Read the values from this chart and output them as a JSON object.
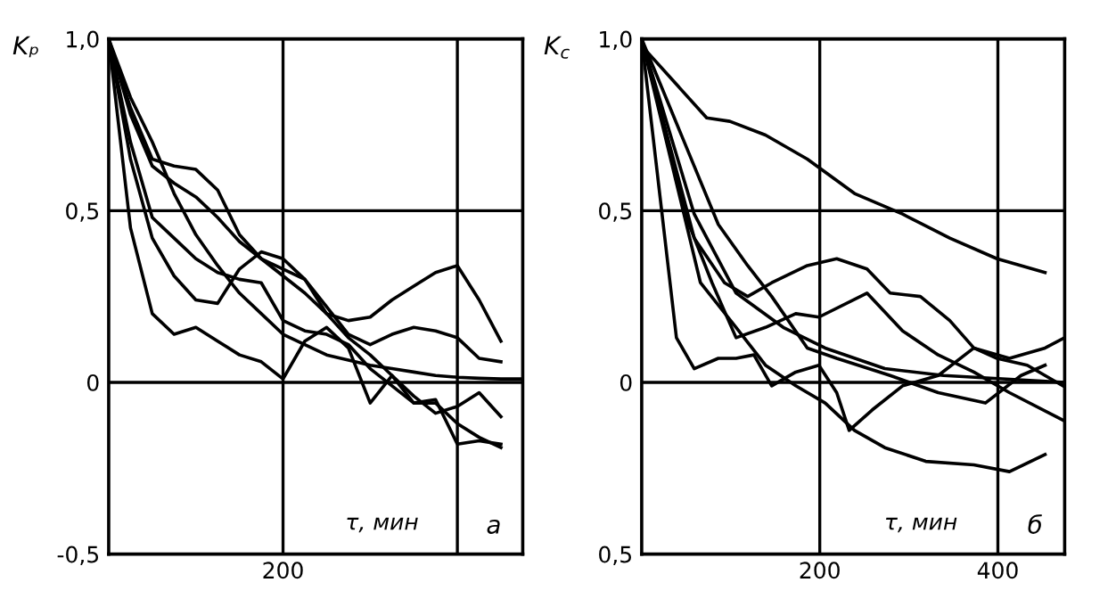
{
  "chart_data": [
    {
      "type": "line",
      "ylabel": "Kₚ",
      "xlabel": "τ, мин",
      "annotations": [
        "а"
      ],
      "categories": [
        null,
        null,
        null,
        null,
        null,
        null,
        null,
        null,
        "200",
        null,
        null,
        null,
        null,
        null,
        null,
        null,
        null,
        null,
        null,
        null
      ],
      "ylim": [
        -0.5,
        1.0
      ],
      "yticks": [
        {
          "value": 1.0,
          "label": "1,0"
        },
        {
          "value": 0.5,
          "label": "0,5"
        },
        0,
        {
          "value": -0.5,
          "label": "-0,5"
        }
      ],
      "grid": true,
      "marker": "none",
      "line_style": "solid",
      "series": [
        {
          "color": "#000000",
          "values": [
            1.0,
            0.83,
            0.7,
            0.55,
            0.43,
            0.34,
            0.26,
            0.2,
            0.14,
            0.11,
            0.08,
            0.065,
            0.05,
            0.04,
            0.03,
            0.02,
            0.015,
            0.012,
            0.01,
            0.01
          ]
        },
        {
          "color": "#000000",
          "values": [
            1.0,
            0.45,
            0.2,
            0.14,
            0.16,
            0.12,
            0.08,
            0.06,
            0.01,
            0.12,
            0.16,
            0.1,
            -0.06,
            0.02,
            -0.06,
            -0.05,
            -0.18,
            -0.17,
            -0.18,
            null
          ]
        },
        {
          "color": "#000000",
          "values": [
            1.0,
            0.65,
            0.42,
            0.31,
            0.24,
            0.23,
            0.33,
            0.38,
            0.36,
            0.3,
            0.2,
            0.18,
            0.19,
            0.24,
            0.28,
            0.32,
            0.34,
            0.24,
            0.12,
            null
          ]
        },
        {
          "color": "#000000",
          "values": [
            1.0,
            0.8,
            0.65,
            0.63,
            0.62,
            0.56,
            0.43,
            0.36,
            0.33,
            0.3,
            0.22,
            0.14,
            0.11,
            0.14,
            0.16,
            0.15,
            0.13,
            0.07,
            0.06,
            null
          ]
        },
        {
          "color": "#000000",
          "values": [
            1.0,
            0.78,
            0.63,
            0.58,
            0.54,
            0.48,
            0.41,
            0.36,
            0.31,
            0.26,
            0.2,
            0.13,
            0.08,
            0.02,
            -0.04,
            -0.09,
            -0.07,
            -0.03,
            -0.1,
            null
          ]
        },
        {
          "color": "#000000",
          "values": [
            1.0,
            0.7,
            0.48,
            0.42,
            0.36,
            0.32,
            0.3,
            0.29,
            0.18,
            0.15,
            0.14,
            0.11,
            0.04,
            -0.01,
            -0.06,
            -0.06,
            -0.12,
            -0.16,
            -0.19,
            null
          ]
        }
      ]
    },
    {
      "type": "line",
      "ylabel": "K$_{c}$",
      "xlabel": "τ, мин",
      "annotations": [
        "б"
      ],
      "xlim": [
        0,
        475
      ],
      "xticks": [
        200,
        400
      ],
      "ylim": [
        -0.5,
        1.0
      ],
      "yticks": [
        {
          "value": 1.0,
          "label": "1,0"
        },
        {
          "value": 0.5,
          "label": "0,5"
        },
        0,
        {
          "value": -0.5,
          "label": "0,5"
        }
      ],
      "grid": true,
      "marker": "none",
      "line_style": "solid",
      "series": [
        {
          "color": "#000000",
          "x": [
            0,
            73,
            99,
            139,
            186,
            239,
            293,
            346,
            399,
            453
          ],
          "values": [
            0.98,
            0.77,
            0.76,
            0.72,
            0.65,
            0.55,
            0.49,
            0.42,
            0.36,
            0.32
          ]
        },
        {
          "color": "#000000",
          "x": [
            0,
            59,
            106,
            159,
            206,
            273,
            339,
            475
          ],
          "values": [
            1.0,
            0.49,
            0.26,
            0.16,
            0.1,
            0.04,
            0.02,
            0.0
          ]
        },
        {
          "color": "#000000",
          "x": [
            0,
            39,
            59,
            86,
            106,
            126,
            146,
            173,
            199,
            219,
            233,
            259,
            293,
            333,
            373,
            413,
            453,
            475
          ],
          "values": [
            1.0,
            0.13,
            0.04,
            0.07,
            0.07,
            0.08,
            -0.01,
            0.03,
            0.05,
            -0.03,
            -0.14,
            -0.08,
            -0.01,
            0.02,
            0.1,
            0.07,
            0.1,
            0.13
          ]
        },
        {
          "color": "#000000",
          "x": [
            0,
            66,
            106,
            139,
            173,
            206,
            239,
            273,
            319,
            373,
            413,
            453
          ],
          "values": [
            1.0,
            0.29,
            0.16,
            0.05,
            -0.01,
            -0.06,
            -0.14,
            -0.19,
            -0.23,
            -0.24,
            -0.26,
            -0.21
          ]
        },
        {
          "color": "#000000",
          "x": [
            0,
            59,
            93,
            119,
            146,
            186,
            219,
            253,
            279,
            313,
            346,
            373,
            399,
            433,
            473
          ],
          "values": [
            1.0,
            0.42,
            0.29,
            0.25,
            0.29,
            0.34,
            0.36,
            0.33,
            0.26,
            0.25,
            0.18,
            0.1,
            0.07,
            0.05,
            -0.01
          ]
        },
        {
          "color": "#000000",
          "x": [
            0,
            53,
            79,
            106,
            139,
            173,
            199,
            253,
            293,
            333,
            373,
            413,
            473
          ],
          "values": [
            1.0,
            0.46,
            0.29,
            0.13,
            0.16,
            0.2,
            0.19,
            0.26,
            0.15,
            0.08,
            0.03,
            -0.03,
            -0.11
          ]
        },
        {
          "color": "#000000",
          "x": [
            0,
            86,
            119,
            146,
            186,
            219,
            279,
            333,
            386,
            426,
            453
          ],
          "values": [
            1.0,
            0.46,
            0.34,
            0.25,
            0.1,
            0.07,
            0.02,
            -0.03,
            -0.06,
            0.02,
            0.05
          ]
        }
      ]
    }
  ]
}
